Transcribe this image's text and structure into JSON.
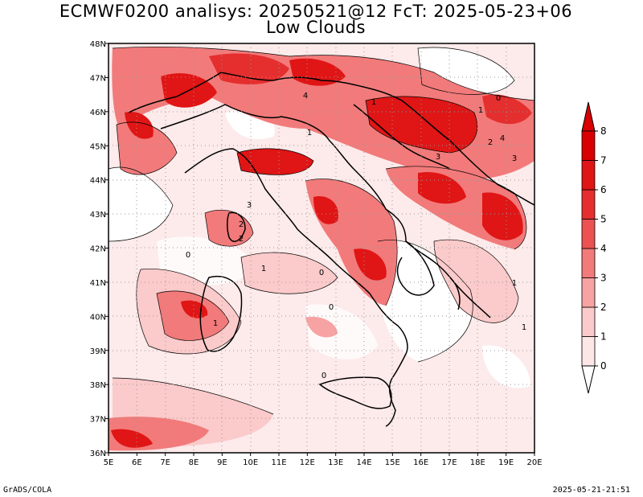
{
  "header": {
    "title": "ECMWF0200 analisys: 20250521@12 FcT: 2025-05-23+06",
    "subtitle": "Low Clouds"
  },
  "footer": {
    "left": "GrADS/COLA",
    "right": "2025-05-21-21:51"
  },
  "map": {
    "lon_labels": [
      "5E",
      "6E",
      "7E",
      "8E",
      "9E",
      "10E",
      "11E",
      "12E",
      "13E",
      "14E",
      "15E",
      "16E",
      "17E",
      "18E",
      "19E",
      "20E"
    ],
    "lat_labels": [
      "48N",
      "47N",
      "46N",
      "45N",
      "44N",
      "43N",
      "42N",
      "41N",
      "40N",
      "39N",
      "38N",
      "37N",
      "36N"
    ],
    "grid": true,
    "contour_labels": [
      "1",
      "2",
      "3",
      "4",
      "1",
      "0",
      "0",
      "1",
      "2",
      "3",
      "4",
      "1",
      "0",
      "1",
      "2",
      "3",
      "1",
      "0",
      "1",
      "0"
    ]
  },
  "colorbar": {
    "levels": [
      "0",
      "1",
      "2",
      "3",
      "4",
      "5",
      "6",
      "7",
      "8"
    ],
    "colors": [
      "#ffffff",
      "#fde6e6",
      "#fbcaca",
      "#f7a3a3",
      "#f27a7a",
      "#ec5252",
      "#e52e2e",
      "#e01515",
      "#d80000"
    ]
  }
}
